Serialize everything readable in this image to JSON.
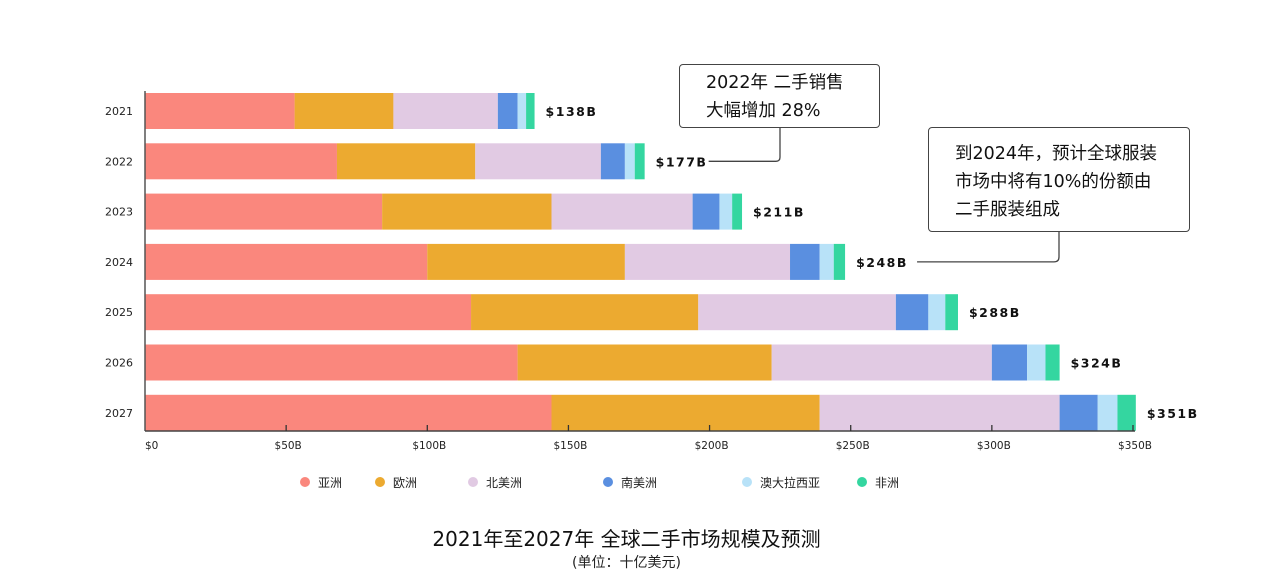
{
  "chart_data": {
    "type": "bar",
    "orientation": "horizontal",
    "stacked": true,
    "title": "2021年至2027年 全球二手市场规模及预测",
    "subtitle": "(单位：十亿美元)",
    "xlabel": "",
    "ylabel": "",
    "xlim": [
      0,
      350
    ],
    "x_ticks": [
      0,
      50,
      100,
      150,
      200,
      250,
      300,
      350
    ],
    "x_tick_labels": [
      "$0",
      "$50B",
      "$100B",
      "$150B",
      "$200B",
      "$250B",
      "$300B",
      "$350B"
    ],
    "grid": false,
    "legend_position": "bottom",
    "categories": [
      "2021",
      "2022",
      "2023",
      "2024",
      "2025",
      "2026",
      "2027"
    ],
    "totals": [
      138,
      177,
      211,
      248,
      288,
      324,
      351
    ],
    "total_labels": [
      "$138B",
      "$177B",
      "$211B",
      "$248B",
      "$288B",
      "$324B",
      "$351B"
    ],
    "series": [
      {
        "name": "亚洲",
        "color": "#FA877D",
        "values": [
          53,
          68,
          84,
          100,
          115.5,
          132,
          144
        ]
      },
      {
        "name": "欧洲",
        "color": "#ECAA30",
        "values": [
          35,
          49,
          60,
          70,
          80.5,
          90,
          95
        ]
      },
      {
        "name": "北美洲",
        "color": "#E1CAE3",
        "values": [
          37,
          44.5,
          50,
          58.5,
          70,
          78,
          85
        ]
      },
      {
        "name": "南美洲",
        "color": "#5A8FE0",
        "values": [
          7,
          8.5,
          9.5,
          10.5,
          11.5,
          12.5,
          13.5
        ]
      },
      {
        "name": "澳大拉西亚",
        "color": "#B8E2F8",
        "values": [
          3,
          3.5,
          4.5,
          5,
          6,
          6.5,
          7
        ]
      },
      {
        "name": "非洲",
        "color": "#34D6A0",
        "values": [
          3,
          3.5,
          3.5,
          4,
          4.5,
          5,
          6.5
        ]
      }
    ],
    "annotations": [
      {
        "target": "2022",
        "lines": [
          "2022年 二手销售",
          "大幅增加 28%"
        ]
      },
      {
        "target": "2024",
        "lines": [
          "到2024年，预计全球服装",
          "市场中将有10%的份额由",
          "二手服装组成"
        ]
      }
    ]
  }
}
